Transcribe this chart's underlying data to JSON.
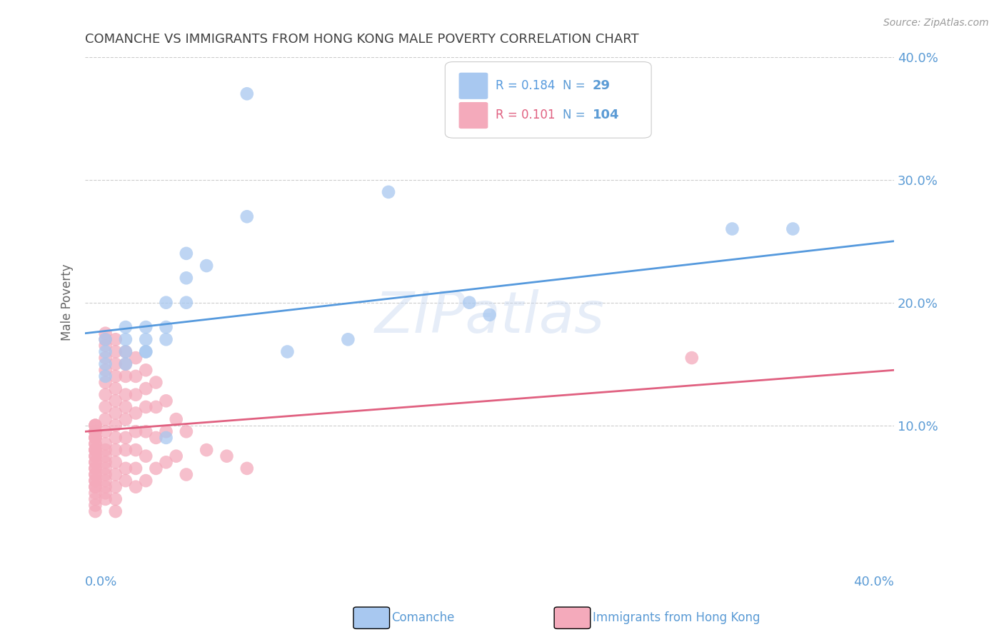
{
  "title": "COMANCHE VS IMMIGRANTS FROM HONG KONG MALE POVERTY CORRELATION CHART",
  "source": "Source: ZipAtlas.com",
  "ylabel": "Male Poverty",
  "watermark": "ZIPatlas",
  "xlim": [
    0.0,
    0.4
  ],
  "ylim": [
    0.0,
    0.4
  ],
  "yticks": [
    0.1,
    0.2,
    0.3,
    0.4
  ],
  "xticks": [
    0.0,
    0.1,
    0.2,
    0.3,
    0.4
  ],
  "blue_R": 0.184,
  "blue_N": 29,
  "pink_R": 0.101,
  "pink_N": 104,
  "blue_color": "#A8C8F0",
  "pink_color": "#F4AABB",
  "blue_line_color": "#5599DD",
  "pink_line_color": "#E06080",
  "label_color": "#5B9BD5",
  "title_color": "#404040",
  "grid_color": "#CCCCCC",
  "background_color": "#FFFFFF",
  "blue_points_x": [
    0.08,
    0.08,
    0.15,
    0.05,
    0.05,
    0.05,
    0.06,
    0.04,
    0.04,
    0.04,
    0.03,
    0.03,
    0.03,
    0.03,
    0.02,
    0.02,
    0.02,
    0.02,
    0.01,
    0.01,
    0.01,
    0.01,
    0.1,
    0.13,
    0.2,
    0.19,
    0.32,
    0.35,
    0.04
  ],
  "blue_points_y": [
    0.37,
    0.27,
    0.29,
    0.24,
    0.22,
    0.2,
    0.23,
    0.2,
    0.18,
    0.17,
    0.18,
    0.17,
    0.16,
    0.16,
    0.18,
    0.17,
    0.16,
    0.15,
    0.17,
    0.16,
    0.15,
    0.14,
    0.16,
    0.17,
    0.19,
    0.2,
    0.26,
    0.26,
    0.09
  ],
  "pink_points_x": [
    0.005,
    0.005,
    0.005,
    0.005,
    0.005,
    0.005,
    0.005,
    0.005,
    0.005,
    0.005,
    0.005,
    0.005,
    0.005,
    0.005,
    0.005,
    0.005,
    0.005,
    0.005,
    0.005,
    0.005,
    0.005,
    0.005,
    0.005,
    0.005,
    0.005,
    0.005,
    0.005,
    0.005,
    0.005,
    0.005,
    0.01,
    0.01,
    0.01,
    0.01,
    0.01,
    0.01,
    0.01,
    0.01,
    0.01,
    0.01,
    0.01,
    0.01,
    0.01,
    0.01,
    0.01,
    0.01,
    0.01,
    0.01,
    0.01,
    0.01,
    0.015,
    0.015,
    0.015,
    0.015,
    0.015,
    0.015,
    0.015,
    0.015,
    0.015,
    0.015,
    0.015,
    0.015,
    0.015,
    0.015,
    0.015,
    0.02,
    0.02,
    0.02,
    0.02,
    0.02,
    0.02,
    0.02,
    0.02,
    0.02,
    0.02,
    0.025,
    0.025,
    0.025,
    0.025,
    0.025,
    0.025,
    0.025,
    0.025,
    0.03,
    0.03,
    0.03,
    0.03,
    0.03,
    0.03,
    0.035,
    0.035,
    0.035,
    0.035,
    0.04,
    0.04,
    0.04,
    0.045,
    0.045,
    0.05,
    0.05,
    0.06,
    0.07,
    0.08,
    0.3
  ],
  "pink_points_y": [
    0.1,
    0.1,
    0.1,
    0.095,
    0.095,
    0.095,
    0.09,
    0.09,
    0.09,
    0.085,
    0.085,
    0.08,
    0.08,
    0.08,
    0.075,
    0.075,
    0.07,
    0.07,
    0.065,
    0.065,
    0.06,
    0.06,
    0.055,
    0.055,
    0.05,
    0.05,
    0.045,
    0.04,
    0.035,
    0.03,
    0.175,
    0.17,
    0.165,
    0.155,
    0.145,
    0.135,
    0.125,
    0.115,
    0.105,
    0.095,
    0.085,
    0.08,
    0.075,
    0.07,
    0.065,
    0.06,
    0.055,
    0.05,
    0.045,
    0.04,
    0.17,
    0.16,
    0.15,
    0.14,
    0.13,
    0.12,
    0.11,
    0.1,
    0.09,
    0.08,
    0.07,
    0.06,
    0.05,
    0.04,
    0.03,
    0.16,
    0.15,
    0.14,
    0.125,
    0.115,
    0.105,
    0.09,
    0.08,
    0.065,
    0.055,
    0.155,
    0.14,
    0.125,
    0.11,
    0.095,
    0.08,
    0.065,
    0.05,
    0.145,
    0.13,
    0.115,
    0.095,
    0.075,
    0.055,
    0.135,
    0.115,
    0.09,
    0.065,
    0.12,
    0.095,
    0.07,
    0.105,
    0.075,
    0.095,
    0.06,
    0.08,
    0.075,
    0.065,
    0.155
  ]
}
